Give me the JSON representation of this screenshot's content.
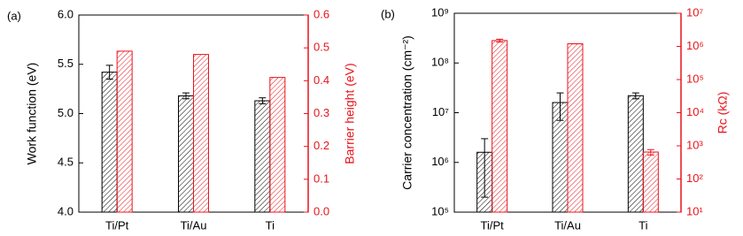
{
  "chart_data": [
    {
      "type": "bar",
      "panel_label": "(a)",
      "categories": [
        "Ti/Pt",
        "Ti/Au",
        "Ti"
      ],
      "ylabel": "Work function (eV)",
      "y2label": "Barrier height (eV)",
      "ylim": [
        4,
        6
      ],
      "yticks": [
        {
          "value": 4,
          "label": "4.0"
        },
        {
          "value": 4.5,
          "label": "4.5"
        },
        {
          "value": 5,
          "label": "5.0"
        },
        {
          "value": 5.5,
          "label": "5.5"
        },
        {
          "value": 6,
          "label": "6.0"
        }
      ],
      "y2lim": [
        0,
        0.6
      ],
      "y2ticks": [
        {
          "value": 0,
          "label": "0.0"
        },
        {
          "value": 0.1,
          "label": "0.1"
        },
        {
          "value": 0.2,
          "label": "0.2"
        },
        {
          "value": 0.3,
          "label": "0.3"
        },
        {
          "value": 0.4,
          "label": "0.4"
        },
        {
          "value": 0.5,
          "label": "0.5"
        },
        {
          "value": 0.6,
          "label": "0.6"
        }
      ],
      "log": false,
      "series": [
        {
          "color": "#000000",
          "values": [
            5.42,
            5.18,
            5.13
          ],
          "errors": [
            0.07,
            0.03,
            0.03
          ]
        },
        {
          "color": "#e8141c",
          "axis": "y2",
          "values": [
            0.49,
            0.48,
            0.41
          ]
        }
      ]
    },
    {
      "type": "bar",
      "panel_label": "(b)",
      "categories": [
        "Ti/Pt",
        "Ti/Au",
        "Ti"
      ],
      "ylabel": "Carrier concentration (cm⁻²)",
      "y2label": "Rc (kΩ)",
      "ylim": [
        100000,
        1000000000
      ],
      "yticks": [
        {
          "value": 100000,
          "label": "10⁵"
        },
        {
          "value": 1000000,
          "label": "10⁶"
        },
        {
          "value": 10000000,
          "label": "10⁷"
        },
        {
          "value": 100000000,
          "label": "10⁸"
        },
        {
          "value": 1000000000,
          "label": "10⁹"
        }
      ],
      "y2lim": [
        10,
        10000000
      ],
      "y2ticks": [
        {
          "value": 10,
          "label": "10¹"
        },
        {
          "value": 100,
          "label": "10²"
        },
        {
          "value": 1000,
          "label": "10³"
        },
        {
          "value": 10000,
          "label": "10⁴"
        },
        {
          "value": 100000,
          "label": "10⁵"
        },
        {
          "value": 1000000,
          "label": "10⁶"
        },
        {
          "value": 10000000,
          "label": "10⁷"
        }
      ],
      "log": true,
      "series": [
        {
          "color": "#000000",
          "values": [
            1600000,
            16000000,
            22000000
          ],
          "errors": [
            1400000,
            9000000,
            3000000
          ]
        },
        {
          "color": "#e8141c",
          "axis": "y2",
          "values": [
            1500000,
            1200000,
            650
          ],
          "errors": [
            150000,
            0,
            120
          ]
        }
      ]
    }
  ]
}
